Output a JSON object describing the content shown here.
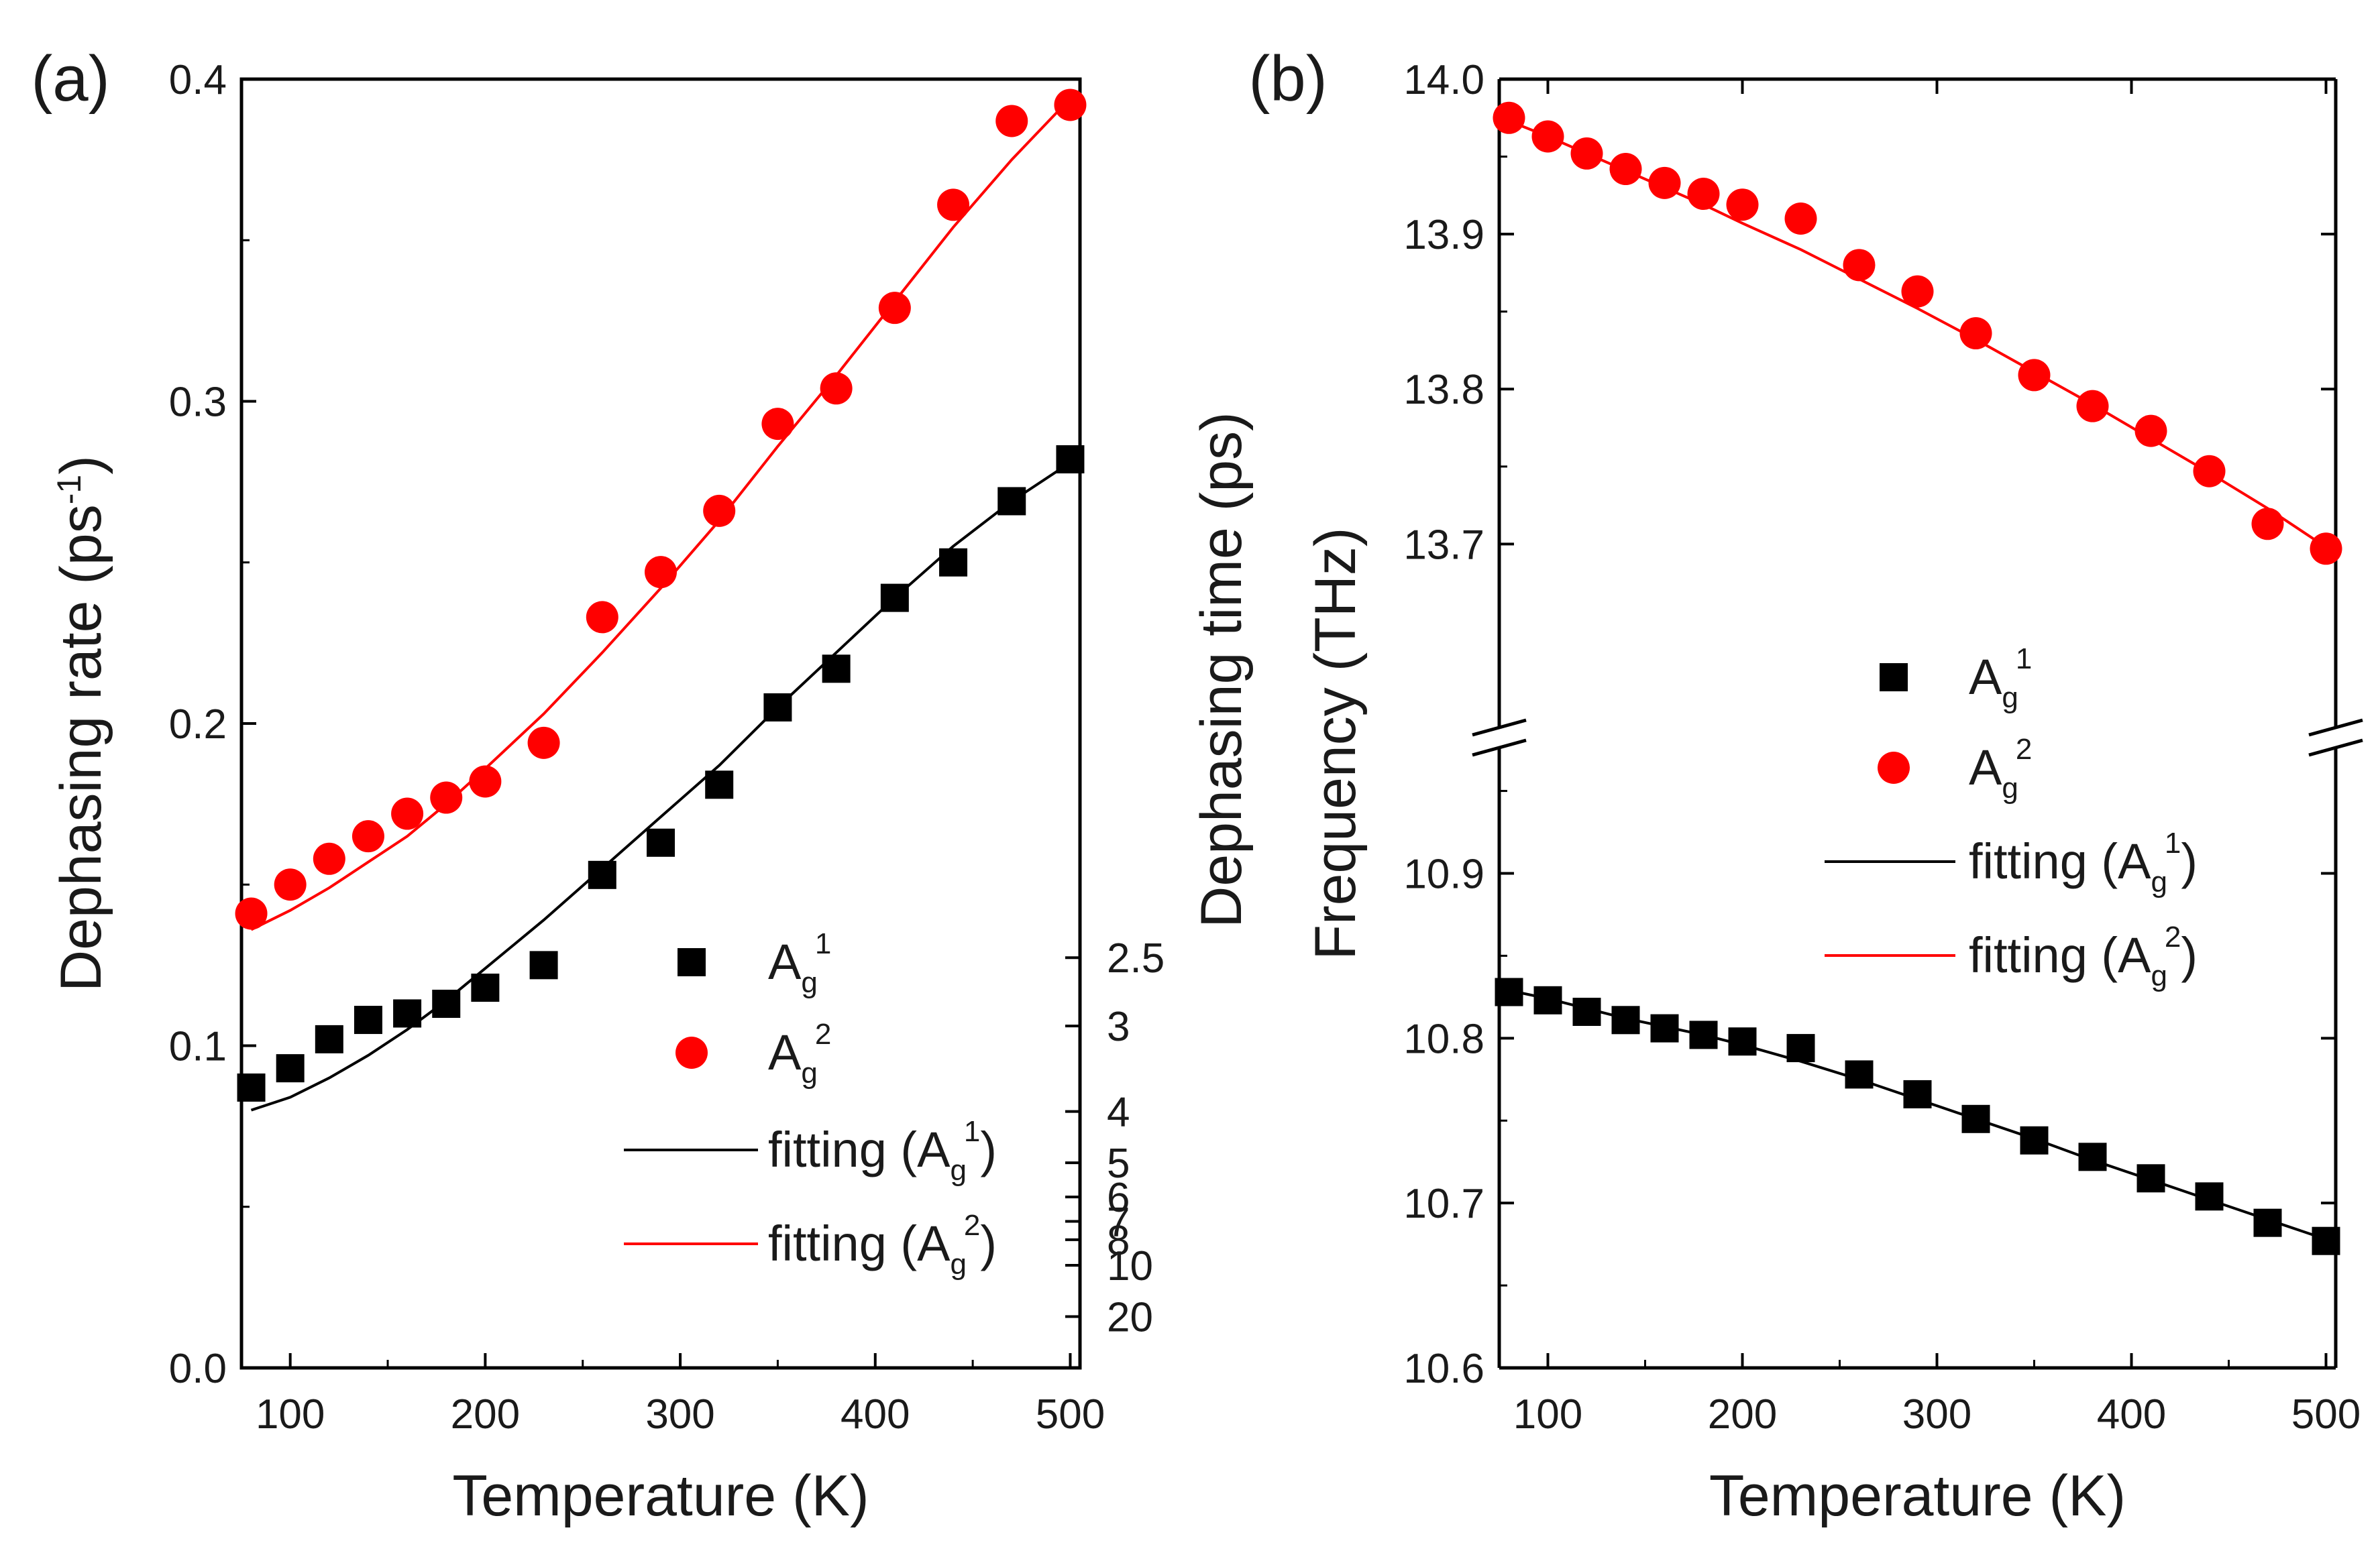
{
  "chart_data": [
    {
      "panel_label": "(a)",
      "type": "scatter",
      "xlabel": "Temperature (K)",
      "ylabel": "Dephasing rate (ps⁻¹)",
      "ylabel_parts": {
        "main": "Dephasing rate (ps",
        "sup": "-1",
        "close": ")"
      },
      "y2label": "Dephasing time (ps)",
      "xlim": [
        75,
        505
      ],
      "ylim": [
        0.0,
        0.4
      ],
      "xticks": [
        100,
        200,
        300,
        400,
        500
      ],
      "xtick_labels": [
        "100",
        "200",
        "300",
        "400",
        "500"
      ],
      "yticks": [
        0.0,
        0.1,
        0.2,
        0.3,
        0.4
      ],
      "ytick_labels": [
        "0.0",
        "0.1",
        "0.2",
        "0.3",
        "0.4"
      ],
      "y2ticks": [
        2.5,
        3,
        4,
        5,
        6,
        7,
        8,
        10,
        20
      ],
      "y2tick_labels": [
        "2.5",
        "3",
        "4",
        "5",
        "6",
        "7",
        "8",
        "10",
        "20"
      ],
      "series": [
        {
          "name": "A_g^1",
          "marker": "square",
          "color": "#000000",
          "x": [
            80,
            100,
            120,
            140,
            160,
            180,
            200,
            230,
            260,
            290,
            320,
            350,
            380,
            410,
            440,
            470,
            500
          ],
          "y": [
            0.087,
            0.093,
            0.102,
            0.108,
            0.11,
            0.113,
            0.118,
            0.125,
            0.153,
            0.163,
            0.181,
            0.205,
            0.217,
            0.239,
            0.25,
            0.269,
            0.282
          ]
        },
        {
          "name": "A_g^2",
          "marker": "circle",
          "color": "#ff0000",
          "x": [
            80,
            100,
            120,
            140,
            160,
            180,
            200,
            230,
            260,
            290,
            320,
            350,
            380,
            410,
            440,
            470,
            500
          ],
          "y": [
            0.141,
            0.15,
            0.158,
            0.165,
            0.172,
            0.177,
            0.182,
            0.194,
            0.233,
            0.247,
            0.266,
            0.293,
            0.304,
            0.329,
            0.361,
            0.387,
            0.392
          ]
        },
        {
          "name": "fitting (A_g^1)",
          "type": "line",
          "color": "#000000",
          "x": [
            80,
            100,
            120,
            140,
            160,
            180,
            200,
            230,
            260,
            290,
            320,
            350,
            380,
            410,
            440,
            470,
            500
          ],
          "y": [
            0.08,
            0.084,
            0.09,
            0.097,
            0.105,
            0.114,
            0.124,
            0.139,
            0.155,
            0.171,
            0.187,
            0.205,
            0.222,
            0.239,
            0.255,
            0.269,
            0.281
          ]
        },
        {
          "name": "fitting (A_g^2)",
          "type": "line",
          "color": "#ff0000",
          "x": [
            80,
            100,
            120,
            140,
            160,
            180,
            200,
            230,
            260,
            290,
            320,
            350,
            380,
            410,
            440,
            470,
            500
          ],
          "y": [
            0.136,
            0.142,
            0.149,
            0.157,
            0.165,
            0.175,
            0.186,
            0.203,
            0.222,
            0.242,
            0.263,
            0.286,
            0.308,
            0.331,
            0.354,
            0.375,
            0.394
          ]
        }
      ],
      "legend": {
        "position": "center-right",
        "entries": [
          {
            "prefix": "",
            "base": "A",
            "sub": "g",
            "sup": "1",
            "suffix": ""
          },
          {
            "prefix": "",
            "base": "A",
            "sub": "g",
            "sup": "2",
            "suffix": ""
          },
          {
            "prefix": "fitting (",
            "base": "A",
            "sub": "g",
            "sup": "1",
            "suffix": ")"
          },
          {
            "prefix": "fitting (",
            "base": "A",
            "sub": "g",
            "sup": "2",
            "suffix": ")"
          }
        ]
      }
    },
    {
      "panel_label": "(b)",
      "type": "scatter",
      "xlabel": "Temperature (K)",
      "ylabel": "Frequency (THz)",
      "xlim": [
        75,
        505
      ],
      "broken_y_axis": true,
      "segments": [
        {
          "range": [
            13.64,
            14.0
          ],
          "ticks": [
            13.7,
            13.8,
            13.9,
            14.0
          ],
          "tick_labels": [
            "13.7",
            "13.8",
            "13.9",
            "14.0"
          ]
        },
        {
          "range": [
            10.6,
            10.96
          ],
          "ticks": [
            10.6,
            10.7,
            10.8,
            10.9
          ],
          "tick_labels": [
            "10.6",
            "10.7",
            "10.8",
            "10.9"
          ]
        }
      ],
      "xticks": [
        100,
        200,
        300,
        400,
        500
      ],
      "xtick_labels": [
        "100",
        "200",
        "300",
        "400",
        "500"
      ],
      "series": [
        {
          "name": "A_g^1",
          "marker": "square",
          "color": "#000000",
          "x": [
            80,
            100,
            120,
            140,
            160,
            180,
            200,
            230,
            260,
            290,
            320,
            350,
            380,
            410,
            440,
            470,
            500
          ],
          "y": [
            10.828,
            10.823,
            10.816,
            10.811,
            10.806,
            10.802,
            10.798,
            10.794,
            10.778,
            10.766,
            10.751,
            10.738,
            10.728,
            10.715,
            10.704,
            10.688,
            10.677
          ]
        },
        {
          "name": "A_g^2",
          "marker": "circle",
          "color": "#ff0000",
          "x": [
            80,
            100,
            120,
            140,
            160,
            180,
            200,
            230,
            260,
            290,
            320,
            350,
            380,
            410,
            440,
            470,
            500
          ],
          "y": [
            13.975,
            13.963,
            13.952,
            13.942,
            13.933,
            13.926,
            13.919,
            13.91,
            13.88,
            13.863,
            13.836,
            13.809,
            13.789,
            13.773,
            13.747,
            13.713,
            13.697
          ]
        },
        {
          "name": "fitting (A_g^1)",
          "type": "line",
          "color": "#000000",
          "x": [
            80,
            100,
            120,
            140,
            160,
            180,
            200,
            230,
            260,
            290,
            320,
            350,
            380,
            410,
            440,
            470,
            500
          ],
          "y": [
            10.829,
            10.824,
            10.818,
            10.812,
            10.807,
            10.802,
            10.796,
            10.786,
            10.775,
            10.763,
            10.751,
            10.739,
            10.726,
            10.714,
            10.702,
            10.69,
            10.678
          ]
        },
        {
          "name": "fitting (A_g^2)",
          "type": "line",
          "color": "#ff0000",
          "x": [
            80,
            100,
            120,
            140,
            160,
            180,
            200,
            230,
            260,
            290,
            320,
            350,
            380,
            410,
            440,
            470,
            500
          ],
          "y": [
            13.973,
            13.963,
            13.952,
            13.941,
            13.93,
            13.919,
            13.907,
            13.89,
            13.871,
            13.852,
            13.832,
            13.811,
            13.79,
            13.768,
            13.746,
            13.723,
            13.698
          ]
        }
      ],
      "legend": {
        "position": "center-right",
        "entries": [
          {
            "prefix": "",
            "base": "A",
            "sub": "g",
            "sup": "1",
            "suffix": ""
          },
          {
            "prefix": "",
            "base": "A",
            "sub": "g",
            "sup": "2",
            "suffix": ""
          },
          {
            "prefix": "fitting (",
            "base": "A",
            "sub": "g",
            "sup": "1",
            "suffix": ")"
          },
          {
            "prefix": "fitting (",
            "base": "A",
            "sub": "g",
            "sup": "2",
            "suffix": ")"
          }
        ]
      }
    }
  ]
}
